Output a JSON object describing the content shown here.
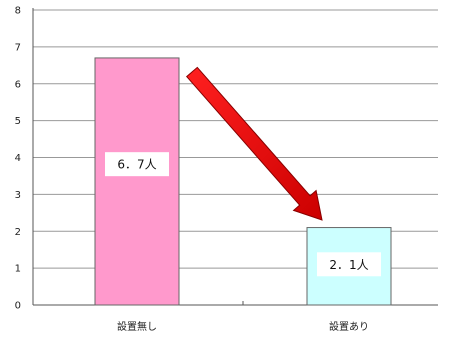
{
  "chart_data": {
    "type": "bar",
    "categories": [
      "設置無し",
      "設置あり"
    ],
    "values": [
      6.7,
      2.1
    ],
    "data_labels": [
      "6．7人",
      "2．1人"
    ],
    "bar_colors": [
      "#ff99cc",
      "#ccffff"
    ],
    "bar_border_color": "#666666",
    "arrow_color": "#dd0000",
    "yticks": [
      0,
      1,
      2,
      3,
      4,
      5,
      6,
      7,
      8
    ],
    "ylim": [
      0,
      8
    ],
    "grid": true,
    "legend": "none",
    "title": "",
    "xlabel": "",
    "ylabel": ""
  }
}
